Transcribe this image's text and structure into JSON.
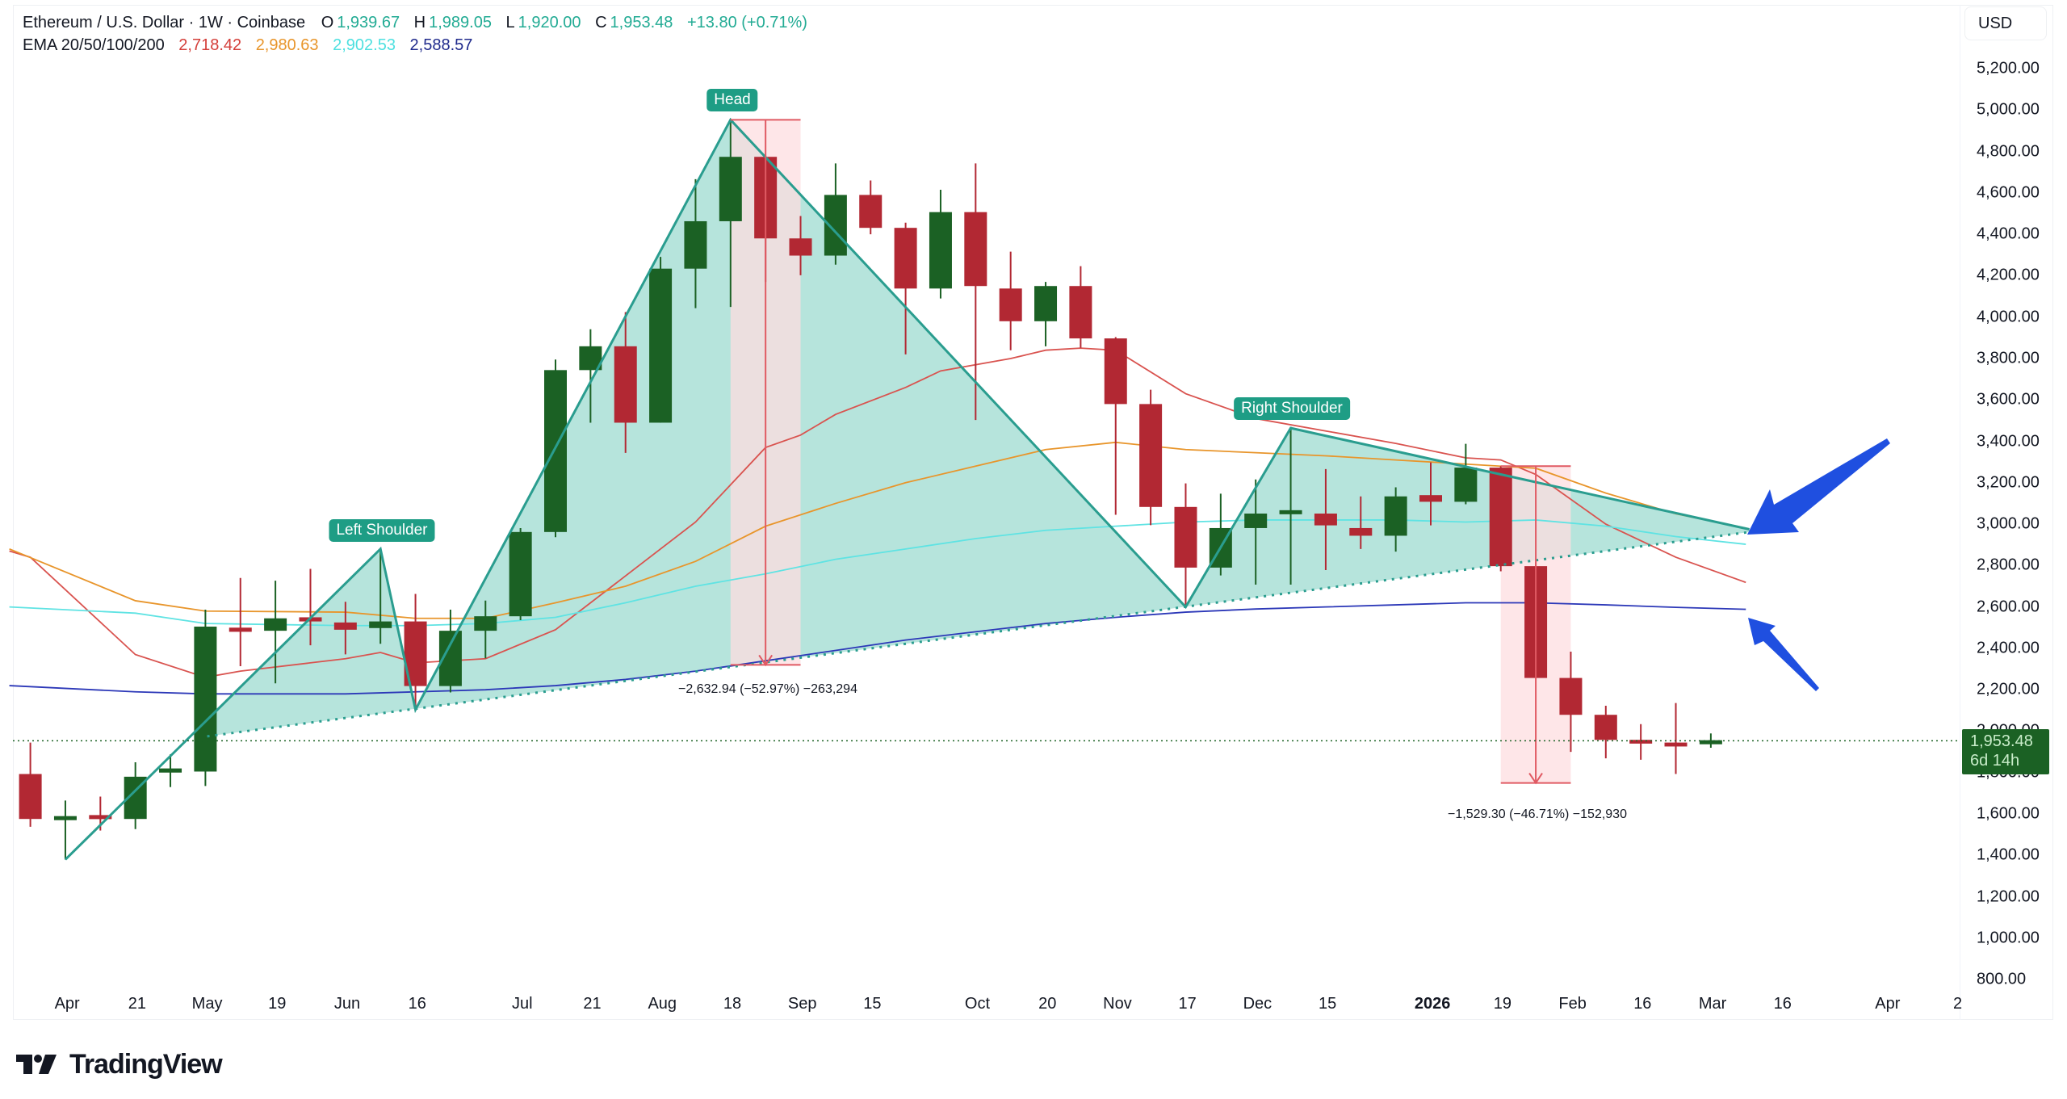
{
  "header": {
    "symbol_title": "Ethereum / U.S. Dollar · 1W · Coinbase",
    "ohlc": [
      {
        "label": "O",
        "value": "1,939.67"
      },
      {
        "label": "H",
        "value": "1,989.05"
      },
      {
        "label": "L",
        "value": "1,920.00"
      },
      {
        "label": "C",
        "value": "1,953.48"
      }
    ],
    "change": "+13.80 (+0.71%)",
    "ema_label": "EMA 20/50/100/200",
    "ema_values": [
      {
        "value": "2,718.42",
        "color": "#d43f3a"
      },
      {
        "value": "2,980.63",
        "color": "#e8952b"
      },
      {
        "value": "2,902.53",
        "color": "#4ee0e0"
      },
      {
        "value": "2,588.57",
        "color": "#1f2a8c"
      }
    ]
  },
  "currency_button": "USD",
  "last_price": {
    "value": "1,953.48",
    "countdown": "6d 14h"
  },
  "brand": {
    "name": "TradingView"
  },
  "annotations": {
    "left_shoulder": "Left Shoulder",
    "head": "Head",
    "right_shoulder": "Right Shoulder",
    "measure_1": "−2,632.94 (−52.97%) −263,294",
    "measure_2": "−1,529.30 (−46.71%) −152,930"
  },
  "colors": {
    "up": "#1b6124",
    "down": "#b22833",
    "pattern_line": "#2a9d8f",
    "pattern_fill": "#b2e3da",
    "measure_fill": "#fddde0",
    "measure_line": "#e05a63",
    "arrow": "#1f4fe0",
    "ema20": "#d9534f",
    "ema50": "#e8952b",
    "ema100": "#5fe3e3",
    "ema200": "#2c38b8"
  },
  "chart_data": {
    "type": "candlestick",
    "title": "Ethereum / U.S. Dollar · 1W · Coinbase",
    "ylabel": "USD",
    "ylim": [
      800,
      5200
    ],
    "y_ticks": [
      "5,200.00",
      "5,000.00",
      "4,800.00",
      "4,600.00",
      "4,400.00",
      "4,200.00",
      "4,000.00",
      "3,800.00",
      "3,600.00",
      "3,400.00",
      "3,200.00",
      "3,000.00",
      "2,800.00",
      "2,600.00",
      "2,400.00",
      "2,200.00",
      "2,000.00",
      "1,800.00",
      "1,600.00",
      "1,400.00",
      "1,200.00",
      "1,000.00",
      "800.00"
    ],
    "x_ticks": [
      {
        "label": "Apr",
        "i": 1.05
      },
      {
        "label": "21",
        "i": 3.05
      },
      {
        "label": "May",
        "i": 5.05
      },
      {
        "label": "19",
        "i": 7.05
      },
      {
        "label": "Jun",
        "i": 9.05
      },
      {
        "label": "16",
        "i": 11.05
      },
      {
        "label": "Jul",
        "i": 14.05
      },
      {
        "label": "21",
        "i": 16.05
      },
      {
        "label": "Aug",
        "i": 18.05
      },
      {
        "label": "18",
        "i": 20.05
      },
      {
        "label": "Sep",
        "i": 22.05
      },
      {
        "label": "15",
        "i": 24.05
      },
      {
        "label": "Oct",
        "i": 27.05
      },
      {
        "label": "20",
        "i": 29.05
      },
      {
        "label": "Nov",
        "i": 31.05
      },
      {
        "label": "17",
        "i": 33.05
      },
      {
        "label": "Dec",
        "i": 35.05
      },
      {
        "label": "15",
        "i": 37.05
      },
      {
        "label": "2026",
        "i": 40.05,
        "bold": true
      },
      {
        "label": "19",
        "i": 42.05
      },
      {
        "label": "Feb",
        "i": 44.05
      },
      {
        "label": "16",
        "i": 46.05
      },
      {
        "label": "Mar",
        "i": 48.05
      },
      {
        "label": "16",
        "i": 50.05
      },
      {
        "label": "Apr",
        "i": 53.05
      },
      {
        "label": "2",
        "i": 55.05
      }
    ],
    "candles": [
      [
        1793,
        1945,
        1538,
        1576
      ],
      [
        1575,
        1665,
        1380,
        1585
      ],
      [
        1590,
        1684,
        1520,
        1580
      ],
      [
        1576,
        1850,
        1527,
        1780
      ],
      [
        1800,
        1888,
        1730,
        1820
      ],
      [
        1805,
        2587,
        1735,
        2505
      ],
      [
        2500,
        2740,
        2314,
        2480
      ],
      [
        2485,
        2727,
        2231,
        2545
      ],
      [
        2550,
        2784,
        2415,
        2530
      ],
      [
        2525,
        2625,
        2371,
        2490
      ],
      [
        2498,
        2873,
        2422,
        2530
      ],
      [
        2530,
        2663,
        2117,
        2218
      ],
      [
        2218,
        2587,
        2187,
        2485
      ],
      [
        2485,
        2631,
        2352,
        2555
      ],
      [
        2555,
        2981,
        2536,
        2962
      ],
      [
        2962,
        3795,
        2937,
        3744
      ],
      [
        3744,
        3941,
        3490,
        3859
      ],
      [
        3859,
        4024,
        3344,
        3490
      ],
      [
        3490,
        4291,
        3490,
        4234
      ],
      [
        4234,
        4666,
        4043,
        4463
      ],
      [
        4463,
        4953,
        4049,
        4774
      ],
      [
        4774,
        4780,
        4170,
        4380
      ],
      [
        4380,
        4488,
        4202,
        4297
      ],
      [
        4297,
        4742,
        4253,
        4590
      ],
      [
        4590,
        4660,
        4400,
        4431
      ],
      [
        4431,
        4456,
        3820,
        4138
      ],
      [
        4138,
        4615,
        4090,
        4507
      ],
      [
        4507,
        4742,
        3503,
        4150
      ],
      [
        4138,
        4316,
        3840,
        3980
      ],
      [
        3980,
        4170,
        3859,
        4150
      ],
      [
        4150,
        4246,
        3852,
        3897
      ],
      [
        3897,
        3903,
        3045,
        3580
      ],
      [
        3580,
        3649,
        2995,
        3083
      ],
      [
        3083,
        3197,
        2600,
        2790
      ],
      [
        2790,
        3147,
        2752,
        2981
      ],
      [
        2981,
        3216,
        2708,
        3051
      ],
      [
        3055,
        3470,
        2708,
        3060
      ],
      [
        3051,
        3266,
        2778,
        2994
      ],
      [
        2981,
        3134,
        2880,
        2944
      ],
      [
        2944,
        3178,
        2867,
        3134
      ],
      [
        3140,
        3298,
        2994,
        3108
      ],
      [
        3108,
        3388,
        3096,
        3273
      ],
      [
        3273,
        3280,
        2772,
        2797
      ],
      [
        2797,
        2816,
        2257,
        2257
      ],
      [
        2257,
        2384,
        1900,
        2079
      ],
      [
        2079,
        2123,
        1869,
        1958
      ],
      [
        1958,
        2034,
        1862,
        1940
      ],
      [
        1945,
        2136,
        1793,
        1926
      ],
      [
        1939.67,
        1989.05,
        1920.0,
        1953.48
      ]
    ],
    "candle_format": "[open, high, low, close] weekly, index 0 = first visible week",
    "series": [
      {
        "name": "EMA 20",
        "points": [
          [
            -0.6,
            2870
          ],
          [
            0,
            2840
          ],
          [
            3,
            2370
          ],
          [
            5,
            2260
          ],
          [
            6,
            2290
          ],
          [
            9,
            2350
          ],
          [
            10,
            2380
          ],
          [
            11,
            2330
          ],
          [
            13,
            2350
          ],
          [
            15,
            2490
          ],
          [
            17,
            2750
          ],
          [
            19,
            3010
          ],
          [
            21,
            3370
          ],
          [
            22,
            3430
          ],
          [
            23,
            3530
          ],
          [
            25,
            3660
          ],
          [
            26,
            3740
          ],
          [
            28,
            3800
          ],
          [
            29,
            3840
          ],
          [
            30,
            3850
          ],
          [
            31,
            3840
          ],
          [
            33,
            3630
          ],
          [
            35,
            3510
          ],
          [
            37,
            3450
          ],
          [
            39,
            3390
          ],
          [
            41,
            3320
          ],
          [
            42,
            3310
          ],
          [
            43,
            3240
          ],
          [
            45,
            3000
          ],
          [
            47,
            2840
          ],
          [
            49,
            2718.42
          ]
        ]
      },
      {
        "name": "EMA 50",
        "points": [
          [
            -0.6,
            2880
          ],
          [
            3,
            2630
          ],
          [
            5,
            2580
          ],
          [
            9,
            2575
          ],
          [
            11,
            2545
          ],
          [
            13,
            2545
          ],
          [
            15,
            2620
          ],
          [
            17,
            2700
          ],
          [
            19,
            2820
          ],
          [
            21,
            2990
          ],
          [
            23,
            3100
          ],
          [
            25,
            3200
          ],
          [
            27,
            3280
          ],
          [
            29,
            3360
          ],
          [
            31,
            3395
          ],
          [
            33,
            3360
          ],
          [
            35,
            3345
          ],
          [
            37,
            3330
          ],
          [
            39,
            3310
          ],
          [
            41,
            3290
          ],
          [
            43,
            3270
          ],
          [
            45,
            3150
          ],
          [
            47,
            3050
          ],
          [
            49,
            2980.63
          ]
        ]
      },
      {
        "name": "EMA 100",
        "points": [
          [
            -0.6,
            2600
          ],
          [
            3,
            2570
          ],
          [
            5,
            2520
          ],
          [
            9,
            2510
          ],
          [
            11,
            2510
          ],
          [
            13,
            2520
          ],
          [
            15,
            2550
          ],
          [
            17,
            2620
          ],
          [
            19,
            2700
          ],
          [
            21,
            2760
          ],
          [
            23,
            2830
          ],
          [
            25,
            2880
          ],
          [
            27,
            2930
          ],
          [
            29,
            2970
          ],
          [
            31,
            2990
          ],
          [
            33,
            3010
          ],
          [
            35,
            3020
          ],
          [
            37,
            3020
          ],
          [
            39,
            3020
          ],
          [
            41,
            3010
          ],
          [
            43,
            3020
          ],
          [
            45,
            2990
          ],
          [
            47,
            2940
          ],
          [
            49,
            2902.53
          ]
        ]
      },
      {
        "name": "EMA 200",
        "points": [
          [
            -0.6,
            2220
          ],
          [
            3,
            2190
          ],
          [
            5,
            2180
          ],
          [
            9,
            2180
          ],
          [
            11,
            2190
          ],
          [
            13,
            2200
          ],
          [
            15,
            2220
          ],
          [
            17,
            2250
          ],
          [
            19,
            2290
          ],
          [
            21,
            2340
          ],
          [
            23,
            2390
          ],
          [
            25,
            2440
          ],
          [
            27,
            2480
          ],
          [
            29,
            2520
          ],
          [
            31,
            2550
          ],
          [
            33,
            2575
          ],
          [
            35,
            2590
          ],
          [
            37,
            2600
          ],
          [
            39,
            2610
          ],
          [
            41,
            2620
          ],
          [
            43,
            2620
          ],
          [
            45,
            2610
          ],
          [
            47,
            2598
          ],
          [
            49,
            2588.57
          ]
        ]
      }
    ],
    "pattern": {
      "name": "Head and Shoulders",
      "outline": [
        [
          1,
          1380
        ],
        [
          10,
          2880
        ],
        [
          11,
          2104
        ],
        [
          20,
          4953
        ],
        [
          33,
          2600
        ],
        [
          36,
          3464
        ],
        [
          49.1,
          2975
        ]
      ],
      "neckline": [
        [
          5.05,
          1975
        ],
        [
          49.1,
          2962
        ]
      ]
    },
    "measurements": [
      {
        "i_from": 20,
        "i_to": 22,
        "p_from": 4953,
        "p_to": 2320,
        "label": "−2,632.94 (−52.97%) −263,294"
      },
      {
        "i_from": 42,
        "i_to": 44,
        "p_from": 3280,
        "p_to": 1750,
        "label": "−1,529.30 (−46.71%) −152,930"
      }
    ],
    "current_price": 1953.48,
    "grid": false,
    "legend_position": "top-left"
  }
}
